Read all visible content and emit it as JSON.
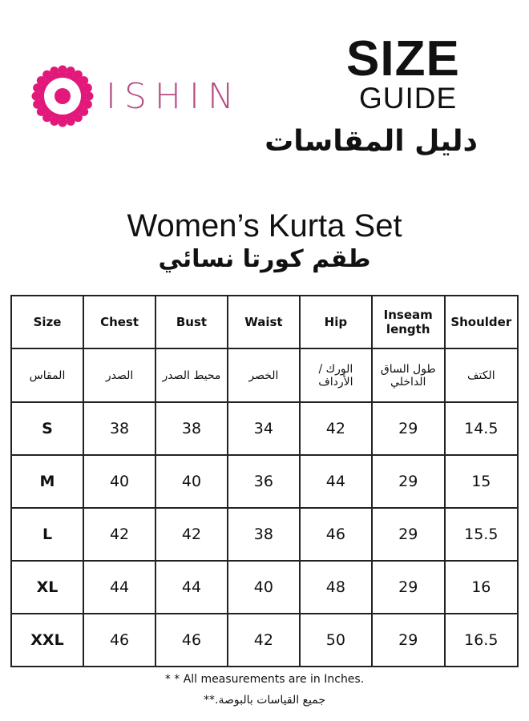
{
  "brand": {
    "name": "ISHIN",
    "color": "#e2197a",
    "text_color": "#b54b82"
  },
  "title": {
    "line1": "SIZE",
    "line2": "GUIDE",
    "arabic": "دليل المقاسات"
  },
  "subtitle": {
    "english": "Women’s Kurta Set",
    "arabic": "طقم كورتا نسائي"
  },
  "table": {
    "headers": [
      "Size",
      "Chest",
      "Bust",
      "Waist",
      "Hip",
      "Inseam length",
      "Shoulder"
    ],
    "headers_ar": [
      "المقاس",
      "الصدر",
      "محيط الصدر",
      "الخصر",
      "الورك / الأرداف",
      "طول الساق الداخلي",
      "الكتف"
    ],
    "rows": [
      [
        "S",
        "38",
        "38",
        "34",
        "42",
        "29",
        "14.5"
      ],
      [
        "M",
        "40",
        "40",
        "36",
        "44",
        "29",
        "15"
      ],
      [
        "L",
        "42",
        "42",
        "38",
        "46",
        "29",
        "15.5"
      ],
      [
        "XL",
        "44",
        "44",
        "40",
        "48",
        "29",
        "16"
      ],
      [
        "XXL",
        "46",
        "46",
        "42",
        "50",
        "29",
        "16.5"
      ]
    ]
  },
  "footer": {
    "note": "* * All measurements are in Inches.",
    "note_ar": "جميع القياسات بالبوصة.**"
  }
}
